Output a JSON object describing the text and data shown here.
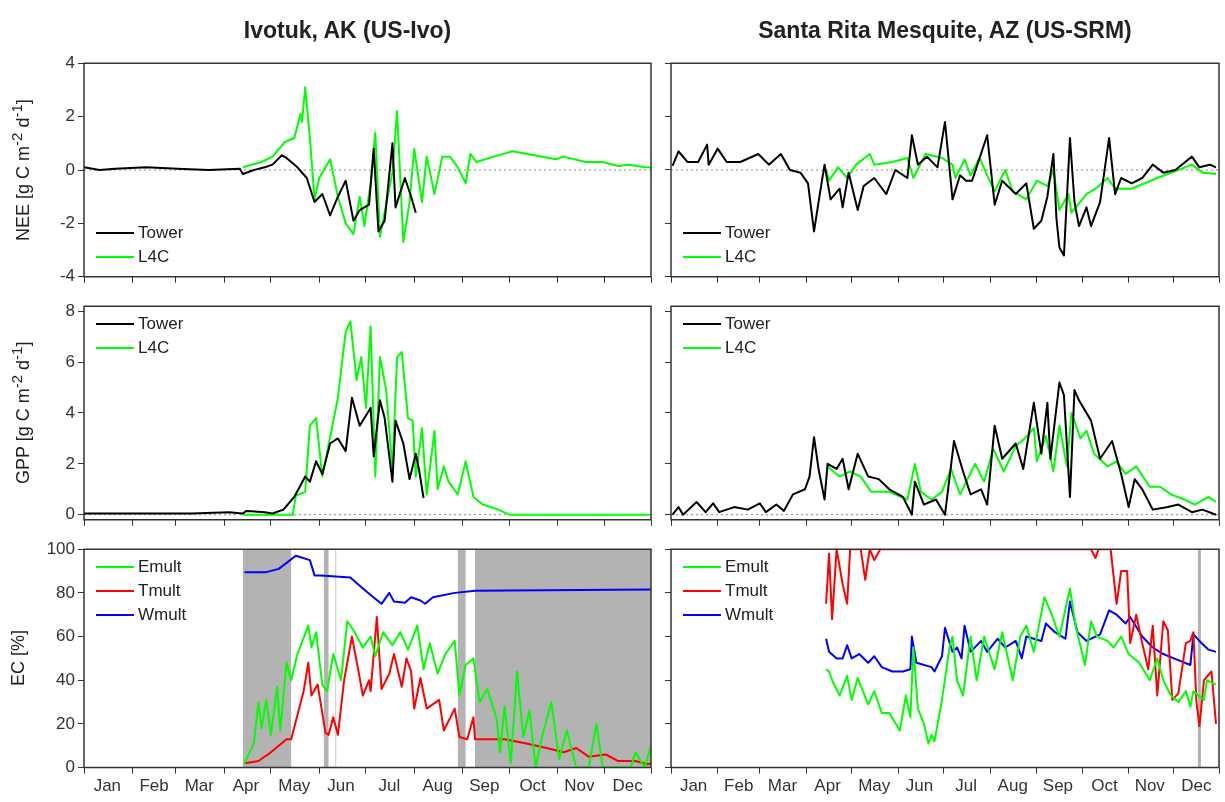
{
  "chart_data": [
    {
      "type": "line",
      "title": "Ivotuk, AK  (US-Ivo)",
      "ylabel": "NEE [g C m$^{-2}$ d$^{-1}$]",
      "xlim": [
        "--01-01",
        "--12-31"
      ],
      "ylim": [
        -4,
        4
      ],
      "yticks": [
        -4,
        -2,
        0,
        2,
        4
      ],
      "xticks": [
        {
          "value": "--01-01",
          "label": null
        },
        {
          "value": "--02-01",
          "label": null
        },
        {
          "value": "--03-01",
          "label": null
        },
        {
          "value": "--04-01",
          "label": null
        },
        {
          "value": "--05-01",
          "label": null
        },
        {
          "value": "--06-01",
          "label": null
        },
        {
          "value": "--07-01",
          "label": null
        },
        {
          "value": "--08-01",
          "label": null
        },
        {
          "value": "--09-01",
          "label": null
        },
        {
          "value": "--10-01",
          "label": null
        },
        {
          "value": "--11-01",
          "label": null
        },
        {
          "value": "--12-01",
          "label": null
        },
        {
          "value": "--12-31",
          "label": null
        }
      ],
      "tick_labels": "y",
      "legend": "bottom left",
      "ref_lines": [
        {
          "axis": "y",
          "value": 0,
          "color": "#888888",
          "line_style": "dotted"
        }
      ],
      "series": [
        {
          "name": "Tower",
          "color": "#000000",
          "x": [
            "--01-01",
            "--01-11",
            "--01-21",
            "--02-10",
            "--03-02",
            "--03-22",
            "--04-11",
            "--04-13",
            "--04-20",
            "--04-27",
            "--05-02",
            "--05-08",
            "--05-11",
            "--05-18",
            "--05-24",
            "--05-29",
            "--06-03",
            "--06-08",
            "--06-13",
            "--06-18",
            "--06-23",
            "--06-27",
            "--07-03",
            "--07-06",
            "--07-09",
            "--07-13",
            "--07-18",
            "--07-20",
            "--07-26",
            "--07-30",
            "--08-02"
          ],
          "values": [
            0.1,
            0.0,
            0.05,
            0.1,
            0.05,
            0.0,
            0.05,
            -0.15,
            0.0,
            0.1,
            0.2,
            0.55,
            0.45,
            0.1,
            -0.3,
            -1.2,
            -0.9,
            -1.7,
            -1.0,
            -0.4,
            -1.9,
            -1.5,
            -1.3,
            0.8,
            -2.3,
            -1.9,
            1.0,
            -1.4,
            -0.3,
            -1.0,
            -1.6
          ]
        },
        {
          "name": "L4C",
          "color": "#00ff00",
          "x": [
            "--04-13",
            "--04-25",
            "--05-02",
            "--05-10",
            "--05-16",
            "--05-20",
            "--05-21",
            "--05-23",
            "--05-26",
            "--05-29",
            "--06-01",
            "--06-08",
            "--06-13",
            "--06-18",
            "--06-23",
            "--06-27",
            "--06-30",
            "--07-04",
            "--07-07",
            "--07-10",
            "--07-13",
            "--07-18",
            "--07-21",
            "--07-25",
            "--07-29",
            "--08-01",
            "--08-06",
            "--08-09",
            "--08-14",
            "--08-19",
            "--08-24",
            "--08-29",
            "--09-03",
            "--09-06",
            "--09-10",
            "--09-21",
            "--10-03",
            "--10-17",
            "--10-31",
            "--11-05",
            "--11-19",
            "--11-30",
            "--12-10",
            "--12-17",
            "--12-27",
            "--12-31"
          ],
          "values": [
            0.1,
            0.3,
            0.5,
            1.05,
            1.2,
            2.1,
            1.8,
            3.1,
            1.2,
            -1.1,
            -0.3,
            0.4,
            -1.0,
            -2.0,
            -2.4,
            -1.0,
            -2.1,
            -0.5,
            1.4,
            -2.5,
            -1.6,
            -0.1,
            2.2,
            -2.7,
            -1.2,
            0.8,
            -1.2,
            0.5,
            -0.9,
            0.5,
            0.5,
            0.1,
            -0.5,
            0.6,
            0.3,
            0.5,
            0.7,
            0.55,
            0.4,
            0.5,
            0.3,
            0.3,
            0.15,
            0.2,
            0.1,
            0.1
          ]
        }
      ]
    },
    {
      "type": "line",
      "title": "Santa Rita Mesquite, AZ  (US-SRM)",
      "xlim": [
        "--01-01",
        "--12-31"
      ],
      "ylim": [
        -4,
        4
      ],
      "yticks": [
        -4,
        -2,
        0,
        2,
        4
      ],
      "xticks": [
        {
          "value": "--01-01",
          "label": null
        },
        {
          "value": "--02-01",
          "label": null
        },
        {
          "value": "--03-01",
          "label": null
        },
        {
          "value": "--04-01",
          "label": null
        },
        {
          "value": "--05-01",
          "label": null
        },
        {
          "value": "--06-01",
          "label": null
        },
        {
          "value": "--07-01",
          "label": null
        },
        {
          "value": "--08-01",
          "label": null
        },
        {
          "value": "--09-01",
          "label": null
        },
        {
          "value": "--10-01",
          "label": null
        },
        {
          "value": "--11-01",
          "label": null
        },
        {
          "value": "--12-01",
          "label": null
        },
        {
          "value": "--12-31",
          "label": null
        }
      ],
      "tick_labels": false,
      "legend": "bottom left",
      "ref_lines": [
        {
          "axis": "y",
          "value": 0,
          "color": "#888888",
          "line_style": "dotted"
        }
      ],
      "series": [
        {
          "name": "Tower",
          "color": "#000000",
          "x": [
            "--01-02",
            "--01-06",
            "--01-12",
            "--01-19",
            "--01-25",
            "--01-26",
            "--02-01",
            "--02-07",
            "--02-16",
            "--02-28",
            "--03-07",
            "--03-15",
            "--03-21",
            "--03-28",
            "--04-02",
            "--04-06",
            "--04-09",
            "--04-13",
            "--04-17",
            "--04-23",
            "--04-25",
            "--04-29",
            "--05-05",
            "--05-09",
            "--05-16",
            "--05-24",
            "--05-30",
            "--06-07",
            "--06-10",
            "--06-14",
            "--06-20",
            "--06-27",
            "--07-02",
            "--07-07",
            "--07-12",
            "--07-16",
            "--07-20",
            "--07-30",
            "--08-04",
            "--08-09",
            "--08-18",
            "--08-25",
            "--08-30",
            "--09-04",
            "--09-08",
            "--09-12",
            "--09-14",
            "--09-16",
            "--09-19",
            "--09-23",
            "--09-26",
            "--09-29",
            "--10-04",
            "--10-07",
            "--10-13",
            "--10-19",
            "--10-23",
            "--10-27",
            "--11-03",
            "--11-10",
            "--11-17",
            "--11-24",
            "--12-02",
            "--12-13",
            "--12-18",
            "--12-25",
            "--12-29"
          ],
          "values": [
            0.15,
            0.7,
            0.3,
            0.3,
            0.95,
            0.2,
            0.8,
            0.3,
            0.3,
            0.6,
            0.2,
            0.6,
            0.0,
            -0.1,
            -0.5,
            -2.3,
            -1.2,
            0.2,
            -1.1,
            -0.7,
            -1.4,
            -0.1,
            -1.5,
            -0.6,
            -0.3,
            -0.9,
            0.0,
            -0.3,
            1.3,
            0.2,
            0.5,
            0.1,
            1.8,
            -1.1,
            -0.2,
            -0.4,
            -0.4,
            1.3,
            -1.3,
            -0.4,
            -0.9,
            -0.5,
            -2.2,
            -1.9,
            -1.0,
            0.6,
            -1.8,
            -2.9,
            -3.2,
            1.2,
            -1.2,
            -2.1,
            -1.4,
            -2.1,
            -1.2,
            1.2,
            -0.9,
            -0.3,
            -0.5,
            -0.3,
            0.2,
            -0.1,
            0.0,
            0.5,
            0.1,
            0.2,
            0.1
          ]
        },
        {
          "name": "L4C",
          "color": "#00ff00",
          "x": [
            "--04-14",
            "--04-16",
            "--04-22",
            "--04-28",
            "--05-04",
            "--05-13",
            "--05-16",
            "--05-28",
            "--06-07",
            "--06-11",
            "--06-19",
            "--06-30",
            "--07-07",
            "--07-09",
            "--07-15",
            "--07-19",
            "--07-25",
            "--07-30",
            "--08-04",
            "--08-11",
            "--08-16",
            "--08-25",
            "--09-01",
            "--09-08",
            "--09-12",
            "--09-16",
            "--09-22",
            "--09-24",
            "--10-04",
            "--10-10",
            "--10-18",
            "--10-23",
            "--11-03",
            "--11-20",
            "--12-04",
            "--12-13",
            "--12-20",
            "--12-29"
          ],
          "values": [
            0.0,
            -0.4,
            0.1,
            -0.3,
            0.2,
            0.6,
            0.2,
            0.3,
            0.45,
            -0.3,
            0.6,
            0.45,
            0.2,
            -0.3,
            0.4,
            -0.2,
            0.45,
            -0.2,
            -0.8,
            0.0,
            -0.8,
            -1.1,
            -0.4,
            -0.6,
            0.0,
            -1.5,
            -0.9,
            -1.6,
            -0.9,
            -0.7,
            -0.3,
            -0.7,
            -0.7,
            -0.3,
            0.0,
            0.2,
            -0.1,
            -0.15
          ]
        }
      ]
    },
    {
      "type": "line",
      "ylabel": "GPP [g C m$^{-2}$ d$^{-1}$]",
      "xlim": [
        "--01-01",
        "--12-31"
      ],
      "ylim": [
        -0.2,
        8.2
      ],
      "yticks": [
        0,
        2,
        4,
        6,
        8
      ],
      "xticks": [
        {
          "value": "--01-01",
          "label": null
        },
        {
          "value": "--02-01",
          "label": null
        },
        {
          "value": "--03-01",
          "label": null
        },
        {
          "value": "--04-01",
          "label": null
        },
        {
          "value": "--05-01",
          "label": null
        },
        {
          "value": "--06-01",
          "label": null
        },
        {
          "value": "--07-01",
          "label": null
        },
        {
          "value": "--08-01",
          "label": null
        },
        {
          "value": "--09-01",
          "label": null
        },
        {
          "value": "--10-01",
          "label": null
        },
        {
          "value": "--11-01",
          "label": null
        },
        {
          "value": "--12-01",
          "label": null
        },
        {
          "value": "--12-31",
          "label": null
        }
      ],
      "tick_labels": "y",
      "legend": "top left",
      "ref_lines": [
        {
          "axis": "y",
          "value": 0,
          "color": "#888888",
          "line_style": "dotted"
        }
      ],
      "series": [
        {
          "name": "Tower",
          "color": "#000000",
          "x": [
            "--01-01",
            "--01-23",
            "--02-16",
            "--03-11",
            "--04-04",
            "--04-13",
            "--04-15",
            "--04-27",
            "--05-02",
            "--05-09",
            "--05-16",
            "--05-23",
            "--05-26",
            "--05-30",
            "--06-03",
            "--06-08",
            "--06-13",
            "--06-18",
            "--06-22",
            "--06-27",
            "--07-04",
            "--07-06",
            "--07-10",
            "--07-13",
            "--07-18",
            "--07-20",
            "--07-25",
            "--07-29",
            "--08-02",
            "--08-04",
            "--08-07"
          ],
          "values": [
            0.05,
            0.05,
            0.05,
            0.05,
            0.1,
            0.05,
            0.15,
            0.1,
            0.05,
            0.2,
            0.7,
            1.5,
            1.3,
            2.1,
            1.6,
            2.8,
            3.0,
            2.5,
            4.6,
            3.5,
            4.2,
            2.3,
            4.5,
            3.8,
            1.3,
            3.7,
            2.8,
            1.4,
            2.4,
            1.8,
            0.65
          ]
        },
        {
          "name": "L4C",
          "color": "#00ff00",
          "x": [
            "--04-13",
            "--05-15",
            "--05-17",
            "--05-23",
            "--05-26",
            "--05-30",
            "--06-03",
            "--06-13",
            "--06-18",
            "--06-21",
            "--06-25",
            "--06-28",
            "--07-01",
            "--07-04",
            "--07-07",
            "--07-10",
            "--07-14",
            "--07-18",
            "--07-21",
            "--07-24",
            "--07-28",
            "--07-31",
            "--08-02",
            "--08-06",
            "--08-09",
            "--08-14",
            "--08-16",
            "--08-20",
            "--08-23",
            "--08-29",
            "--09-03",
            "--09-08",
            "--09-14",
            "--09-24",
            "--10-01",
            "--12-30"
          ],
          "values": [
            0.0,
            0.0,
            0.75,
            0.9,
            3.5,
            3.8,
            1.5,
            4.6,
            7.2,
            7.6,
            5.3,
            6.2,
            4.2,
            7.4,
            1.5,
            6.2,
            4.9,
            1.8,
            6.2,
            6.4,
            3.8,
            3.7,
            1.5,
            3.4,
            0.8,
            3.3,
            1.0,
            1.9,
            1.3,
            0.8,
            2.1,
            0.7,
            0.4,
            0.2,
            0.0,
            0.0
          ]
        }
      ]
    },
    {
      "type": "line",
      "xlim": [
        "--01-01",
        "--12-31"
      ],
      "ylim": [
        -0.2,
        8.2
      ],
      "yticks": [
        0,
        2,
        4,
        6,
        8
      ],
      "xticks": [
        {
          "value": "--01-01",
          "label": null
        },
        {
          "value": "--02-01",
          "label": null
        },
        {
          "value": "--03-01",
          "label": null
        },
        {
          "value": "--04-01",
          "label": null
        },
        {
          "value": "--05-01",
          "label": null
        },
        {
          "value": "--06-01",
          "label": null
        },
        {
          "value": "--07-01",
          "label": null
        },
        {
          "value": "--08-01",
          "label": null
        },
        {
          "value": "--09-01",
          "label": null
        },
        {
          "value": "--10-01",
          "label": null
        },
        {
          "value": "--11-01",
          "label": null
        },
        {
          "value": "--12-01",
          "label": null
        },
        {
          "value": "--12-31",
          "label": null
        }
      ],
      "tick_labels": false,
      "legend": "top left",
      "ref_lines": [
        {
          "axis": "y",
          "value": 0,
          "color": "#888888",
          "line_style": "dotted"
        }
      ],
      "series": [
        {
          "name": "Tower",
          "color": "#000000",
          "x": [
            "--01-02",
            "--01-06",
            "--01-09",
            "--01-18",
            "--01-24",
            "--01-29",
            "--02-02",
            "--02-12",
            "--02-21",
            "--03-01",
            "--03-05",
            "--03-12",
            "--03-17",
            "--03-23",
            "--03-31",
            "--04-03",
            "--04-06",
            "--04-09",
            "--04-13",
            "--04-15",
            "--04-21",
            "--04-25",
            "--04-29",
            "--05-05",
            "--05-12",
            "--05-19",
            "--05-26",
            "--06-04",
            "--06-10",
            "--06-12",
            "--06-18",
            "--06-26",
            "--07-02",
            "--07-08",
            "--07-14",
            "--07-19",
            "--07-26",
            "--07-30",
            "--08-04",
            "--08-09",
            "--08-18",
            "--08-23",
            "--08-30",
            "--09-04",
            "--09-08",
            "--09-10",
            "--09-16",
            "--09-19",
            "--09-23",
            "--09-26",
            "--09-29",
            "--10-07",
            "--10-13",
            "--10-21",
            "--10-27",
            "--11-01",
            "--11-05",
            "--11-10",
            "--11-17",
            "--11-27",
            "--12-04",
            "--12-13",
            "--12-20",
            "--12-29"
          ],
          "values": [
            0.0,
            0.3,
            0.0,
            0.5,
            0.1,
            0.45,
            0.1,
            0.3,
            0.2,
            0.45,
            0.1,
            0.4,
            0.15,
            0.8,
            1.0,
            1.5,
            3.05,
            1.8,
            0.6,
            2.0,
            1.8,
            2.2,
            1.0,
            2.4,
            1.5,
            1.4,
            1.0,
            0.7,
            0.0,
            1.3,
            0.4,
            0.6,
            0.0,
            2.9,
            1.7,
            0.8,
            1.0,
            0.4,
            3.5,
            2.2,
            2.8,
            1.8,
            4.4,
            2.4,
            4.4,
            2.2,
            5.2,
            4.7,
            0.7,
            4.9,
            4.5,
            3.7,
            2.2,
            2.9,
            1.6,
            0.3,
            1.4,
            1.0,
            0.2,
            0.3,
            0.4,
            0.1,
            0.2,
            0.0
          ]
        },
        {
          "name": "L4C",
          "color": "#00ff00",
          "x": [
            "--04-15",
            "--04-23",
            "--04-30",
            "--05-07",
            "--05-14",
            "--05-26",
            "--06-07",
            "--06-12",
            "--06-16",
            "--06-23",
            "--06-30",
            "--07-06",
            "--07-12",
            "--07-22",
            "--07-28",
            "--08-03",
            "--08-10",
            "--08-18",
            "--08-24",
            "--08-30",
            "--09-01",
            "--09-07",
            "--09-12",
            "--09-16",
            "--09-21",
            "--09-24",
            "--09-30",
            "--10-04",
            "--10-09",
            "--10-18",
            "--10-24",
            "--10-30",
            "--11-06",
            "--11-15",
            "--11-22",
            "--11-29",
            "--12-08",
            "--12-15",
            "--12-24",
            "--12-29"
          ],
          "values": [
            1.9,
            1.5,
            1.7,
            1.5,
            0.9,
            0.9,
            0.6,
            2.0,
            0.9,
            0.6,
            0.9,
            1.8,
            0.8,
            2.0,
            1.3,
            2.6,
            1.7,
            2.7,
            3.0,
            3.4,
            2.1,
            3.1,
            1.7,
            3.5,
            1.9,
            4.0,
            3.0,
            3.3,
            2.4,
            1.9,
            2.1,
            1.6,
            1.9,
            1.1,
            1.1,
            0.8,
            0.6,
            0.4,
            0.7,
            0.5
          ]
        }
      ]
    },
    {
      "type": "line",
      "ylabel": "EC [%]",
      "xlim": [
        "--01-01",
        "--12-31"
      ],
      "ylim": [
        0,
        100
      ],
      "yticks": [
        0,
        20,
        40,
        60,
        80,
        100
      ],
      "xticks": [
        {
          "value": "--01-01",
          "label": null
        },
        {
          "value": "--01-16",
          "label": "Jan"
        },
        {
          "value": "--02-01",
          "label": null
        },
        {
          "value": "--02-15",
          "label": "Feb"
        },
        {
          "value": "--03-01",
          "label": null
        },
        {
          "value": "--03-16",
          "label": "Mar"
        },
        {
          "value": "--04-01",
          "label": null
        },
        {
          "value": "--04-15",
          "label": "Apr"
        },
        {
          "value": "--05-01",
          "label": null
        },
        {
          "value": "--05-16",
          "label": "May"
        },
        {
          "value": "--06-01",
          "label": null
        },
        {
          "value": "--06-15",
          "label": "Jun"
        },
        {
          "value": "--07-01",
          "label": null
        },
        {
          "value": "--07-16",
          "label": "Jul"
        },
        {
          "value": "--08-01",
          "label": null
        },
        {
          "value": "--08-16",
          "label": "Aug"
        },
        {
          "value": "--09-01",
          "label": null
        },
        {
          "value": "--09-15",
          "label": "Sep"
        },
        {
          "value": "--10-01",
          "label": null
        },
        {
          "value": "--10-16",
          "label": "Oct"
        },
        {
          "value": "--11-01",
          "label": null
        },
        {
          "value": "--11-15",
          "label": "Nov"
        },
        {
          "value": "--12-01",
          "label": null
        },
        {
          "value": "--12-16",
          "label": "Dec"
        },
        {
          "value": "--12-31",
          "label": null
        }
      ],
      "legend": "top left",
      "bands": [
        {
          "axis": "x",
          "from": "--04-13",
          "to": "--05-14",
          "color": "#b3b3b3"
        },
        {
          "axis": "x",
          "from": "--06-04",
          "to": "--06-07",
          "color": "#b3b3b3"
        },
        {
          "axis": "x",
          "from": "--06-11",
          "to": "--06-12",
          "color": "#d9d9d9"
        },
        {
          "axis": "x",
          "from": "--08-29",
          "to": "--09-03",
          "color": "#b3b3b3"
        },
        {
          "axis": "x",
          "from": "--09-09",
          "to": "--12-31",
          "color": "#b3b3b3"
        }
      ],
      "series": [
        {
          "name": "Emult",
          "color": "#00ff00",
          "x": [
            "--04-14",
            "--04-20",
            "--04-23",
            "--04-25",
            "--04-28",
            "--05-01",
            "--05-05",
            "--05-07",
            "--05-11",
            "--05-14",
            "--05-18",
            "--05-25",
            "--05-27",
            "--05-30",
            "--06-03",
            "--06-06",
            "--06-10",
            "--06-15",
            "--06-19",
            "--06-23",
            "--06-29",
            "--07-04",
            "--07-07",
            "--07-12",
            "--07-18",
            "--07-23",
            "--07-28",
            "--08-03",
            "--08-07",
            "--08-11",
            "--08-16",
            "--08-21",
            "--08-27",
            "--08-30",
            "--09-03",
            "--09-08",
            "--09-12",
            "--09-17",
            "--09-23",
            "--09-25",
            "--09-28",
            "--10-02",
            "--10-06",
            "--10-10",
            "--10-14",
            "--10-18",
            "--10-22",
            "--10-28",
            "--11-02",
            "--11-07",
            "--11-13",
            "--11-21",
            "--11-26",
            "--11-30",
            "--12-18",
            "--12-21",
            "--12-27",
            "--12-31"
          ],
          "values": [
            2,
            11,
            30,
            18,
            31,
            15,
            37,
            17,
            48,
            40,
            52,
            65,
            55,
            62,
            38,
            35,
            52,
            40,
            67,
            63,
            55,
            60,
            51,
            62,
            56,
            62,
            54,
            65,
            45,
            57,
            43,
            52,
            58,
            33,
            47,
            50,
            30,
            36,
            22,
            7,
            28,
            2,
            44,
            14,
            26,
            0,
            14,
            30,
            4,
            17,
            0,
            0,
            20,
            0,
            0,
            7,
            0,
            10
          ]
        },
        {
          "name": "Tmult",
          "color": "#ff0000",
          "x": [
            "--04-14",
            "--04-23",
            "--05-01",
            "--05-06",
            "--05-11",
            "--05-14",
            "--05-22",
            "--05-25",
            "--05-27",
            "--05-31",
            "--06-05",
            "--06-07",
            "--06-10",
            "--06-13",
            "--06-17",
            "--06-22",
            "--06-26",
            "--06-29",
            "--07-03",
            "--07-04",
            "--07-08",
            "--07-11",
            "--07-16",
            "--07-19",
            "--07-24",
            "--07-27",
            "--07-30",
            "--08-01",
            "--08-05",
            "--08-09",
            "--08-17",
            "--08-20",
            "--08-27",
            "--08-30",
            "--09-04",
            "--09-08",
            "--09-09",
            "--09-28",
            "--10-12",
            "--10-25",
            "--11-05",
            "--11-13",
            "--11-21",
            "--12-02",
            "--12-10",
            "--12-21",
            "--12-29",
            "--12-31"
          ],
          "values": [
            2,
            3,
            7,
            10,
            13,
            13,
            35,
            48,
            33,
            38,
            16,
            15,
            23,
            15,
            40,
            60,
            45,
            33,
            40,
            35,
            69,
            36,
            43,
            52,
            37,
            50,
            44,
            27,
            41,
            27,
            31,
            17,
            27,
            14,
            13,
            23,
            13,
            13,
            11,
            9,
            7,
            9,
            5,
            6,
            3,
            3,
            1.5,
            2
          ]
        },
        {
          "name": "Wmult",
          "color": "#0000ff",
          "x": [
            "--04-14",
            "--04-28",
            "--05-06",
            "--05-17",
            "--05-26",
            "--05-29",
            "--06-02",
            "--06-21",
            "--06-29",
            "--07-04",
            "--07-11",
            "--07-16",
            "--07-19",
            "--07-26",
            "--07-30",
            "--08-05",
            "--08-08",
            "--08-13",
            "--08-27",
            "--09-09",
            "--12-31"
          ],
          "values": [
            89.5,
            89.5,
            91,
            97,
            95,
            88,
            88,
            87,
            82,
            79,
            75,
            80,
            76,
            75.5,
            78,
            76.5,
            75,
            78,
            80,
            81,
            81.5
          ]
        }
      ]
    },
    {
      "type": "line",
      "xlim": [
        "--01-01",
        "--12-31"
      ],
      "ylim": [
        0,
        100
      ],
      "yticks": [
        0,
        20,
        40,
        60,
        80,
        100
      ],
      "xticks": [
        {
          "value": "--01-01",
          "label": null
        },
        {
          "value": "--01-16",
          "label": "Jan"
        },
        {
          "value": "--02-01",
          "label": null
        },
        {
          "value": "--02-15",
          "label": "Feb"
        },
        {
          "value": "--03-01",
          "label": null
        },
        {
          "value": "--03-16",
          "label": "Mar"
        },
        {
          "value": "--04-01",
          "label": null
        },
        {
          "value": "--04-15",
          "label": "Apr"
        },
        {
          "value": "--05-01",
          "label": null
        },
        {
          "value": "--05-16",
          "label": "May"
        },
        {
          "value": "--06-01",
          "label": null
        },
        {
          "value": "--06-15",
          "label": "Jun"
        },
        {
          "value": "--07-01",
          "label": null
        },
        {
          "value": "--07-16",
          "label": "Jul"
        },
        {
          "value": "--08-01",
          "label": null
        },
        {
          "value": "--08-16",
          "label": "Aug"
        },
        {
          "value": "--09-01",
          "label": null
        },
        {
          "value": "--09-15",
          "label": "Sep"
        },
        {
          "value": "--10-01",
          "label": null
        },
        {
          "value": "--10-16",
          "label": "Oct"
        },
        {
          "value": "--11-01",
          "label": null
        },
        {
          "value": "--11-15",
          "label": "Nov"
        },
        {
          "value": "--12-01",
          "label": null
        },
        {
          "value": "--12-16",
          "label": "Dec"
        },
        {
          "value": "--12-31",
          "label": null
        }
      ],
      "tick_labels": "x",
      "legend": "top left",
      "bands": [
        {
          "axis": "x",
          "from": "--12-17",
          "to": "--12-19",
          "color": "#b3b3b3"
        }
      ],
      "series": [
        {
          "name": "Emult",
          "color": "#00ff00",
          "x": [
            "--04-14",
            "--04-16",
            "--04-18",
            "--04-23",
            "--04-28",
            "--05-01",
            "--05-05",
            "--05-12",
            "--05-16",
            "--05-21",
            "--05-26",
            "--06-02",
            "--06-06",
            "--06-09",
            "--06-11",
            "--06-14",
            "--06-18",
            "--06-21",
            "--06-23",
            "--06-25",
            "--06-30",
            "--07-05",
            "--07-07",
            "--07-10",
            "--07-14",
            "--07-19",
            "--07-23",
            "--07-28",
            "--08-04",
            "--08-09",
            "--08-16",
            "--08-21",
            "--08-25",
            "--08-30",
            "--09-06",
            "--09-11",
            "--09-16",
            "--09-23",
            "--09-27",
            "--10-03",
            "--10-07",
            "--10-11",
            "--10-18",
            "--10-22",
            "--10-27",
            "--11-01",
            "--11-08",
            "--11-15",
            "--11-20",
            "--11-24",
            "--11-29",
            "--12-04",
            "--12-09",
            "--12-12",
            "--12-14",
            "--12-21",
            "--12-23",
            "--12-29"
          ],
          "values": [
            45,
            44,
            40,
            33,
            42,
            31,
            41,
            29,
            35,
            25,
            25,
            17,
            33,
            23,
            55,
            27,
            20,
            11,
            15,
            12,
            31,
            55,
            60,
            40,
            33,
            60,
            40,
            60,
            45,
            62,
            40,
            60,
            65,
            53,
            78,
            70,
            60,
            82,
            64,
            47,
            67,
            60,
            58,
            55,
            60,
            52,
            48,
            40,
            50,
            40,
            33,
            30,
            35,
            28,
            35,
            31,
            40,
            38
          ]
        },
        {
          "name": "Tmult",
          "color": "#ff0000",
          "x": [
            "--04-14",
            "--04-16",
            "--04-18",
            "--04-21",
            "--04-25",
            "--04-28",
            "--04-30",
            "--05-07",
            "--05-10",
            "--05-13",
            "--05-16",
            "--05-20",
            "--10-07",
            "--10-10",
            "--10-12",
            "--10-20",
            "--10-24",
            "--10-27",
            "--10-31",
            "--11-02",
            "--11-06",
            "--11-10",
            "--11-14",
            "--11-17",
            "--11-20",
            "--11-24",
            "--11-27",
            "--11-30",
            "--12-04",
            "--12-09",
            "--12-12",
            "--12-14",
            "--12-16",
            "--12-18",
            "--12-21",
            "--12-26",
            "--12-29"
          ],
          "values": [
            75,
            98,
            68,
            100,
            84,
            75,
            100,
            100,
            86,
            100,
            95,
            100,
            100,
            96,
            100,
            100,
            75,
            90,
            90,
            57,
            70,
            57,
            45,
            65,
            33,
            67,
            63,
            31,
            34,
            57,
            58,
            62,
            30,
            19,
            40,
            44,
            20
          ]
        },
        {
          "name": "Wmult",
          "color": "#0000ff",
          "x": [
            "--04-14",
            "--04-16",
            "--04-21",
            "--04-25",
            "--04-28",
            "--05-01",
            "--05-06",
            "--05-12",
            "--05-16",
            "--05-21",
            "--05-28",
            "--06-04",
            "--06-09",
            "--06-10",
            "--06-13",
            "--06-23",
            "--06-25",
            "--06-30",
            "--07-02",
            "--07-07",
            "--07-10",
            "--07-13",
            "--07-15",
            "--07-19",
            "--07-26",
            "--07-30",
            "--08-06",
            "--08-11",
            "--08-18",
            "--08-22",
            "--08-25",
            "--09-04",
            "--09-07",
            "--09-13",
            "--09-20",
            "--09-23",
            "--09-28",
            "--10-04",
            "--10-13",
            "--10-19",
            "--10-24",
            "--10-30",
            "--11-02",
            "--11-10",
            "--11-17",
            "--11-24",
            "--12-01",
            "--12-12",
            "--12-14",
            "--12-18",
            "--12-24",
            "--12-29"
          ],
          "values": [
            59,
            53,
            50,
            50,
            56,
            50,
            52,
            48,
            51,
            46,
            44,
            44,
            45,
            60,
            48,
            46,
            44,
            51,
            64,
            53,
            55,
            50,
            65,
            53,
            58,
            53,
            59,
            55,
            58,
            50,
            60,
            58,
            66,
            62,
            59,
            76,
            62,
            58,
            61,
            72,
            70,
            66,
            69,
            60,
            55,
            52,
            50,
            47,
            61,
            58,
            54,
            53
          ]
        }
      ]
    }
  ]
}
